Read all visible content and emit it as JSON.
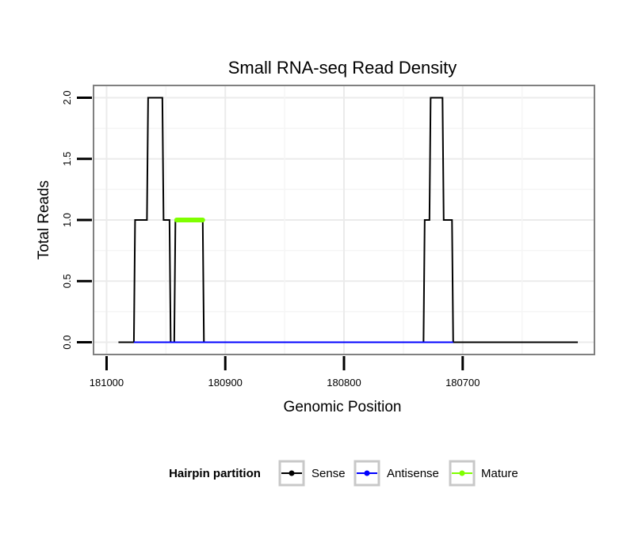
{
  "chart_data": {
    "type": "line",
    "title": "Small RNA-seq Read Density",
    "xlabel": "Genomic Position",
    "ylabel": "Total Reads",
    "x_reversed": true,
    "xlim": [
      181011,
      180589
    ],
    "ylim": [
      -0.1,
      2.1
    ],
    "x_ticks": [
      181000,
      180900,
      180800,
      180700
    ],
    "x_tick_labels": [
      "181000",
      "180900",
      "180800",
      "180700"
    ],
    "y_ticks": [
      0.0,
      0.5,
      1.0,
      1.5,
      2.0
    ],
    "y_tick_labels": [
      "0.0",
      "0.5",
      "1.0",
      "1.5",
      "2.0"
    ],
    "grid": true,
    "legend": {
      "title": "Hairpin partition",
      "position": "bottom",
      "entries": [
        {
          "label": "Sense",
          "color": "#000000"
        },
        {
          "label": "Antisense",
          "color": "#0000ff"
        },
        {
          "label": "Mature",
          "color": "#7fff00"
        }
      ]
    },
    "series": [
      {
        "name": "Sense",
        "color": "#000000",
        "x": [
          180990,
          180977,
          180976,
          180966,
          180965,
          180953,
          180952,
          180947,
          180946,
          180943,
          180942,
          180919,
          180918,
          180733,
          180732,
          180728,
          180727,
          180717,
          180716,
          180709,
          180708,
          180603
        ],
        "y": [
          0,
          0,
          1,
          1,
          2,
          2,
          1,
          1,
          0,
          0,
          1,
          1,
          0,
          0,
          1,
          1,
          2,
          2,
          1,
          1,
          0,
          0
        ]
      },
      {
        "name": "Antisense",
        "color": "#0000ff",
        "x": [
          180977,
          180918,
          180732,
          180708
        ],
        "y": [
          0,
          0,
          0,
          0
        ]
      },
      {
        "name": "Mature",
        "color": "#7fff00",
        "x": [
          180941,
          180919
        ],
        "y": [
          1,
          1
        ]
      }
    ]
  }
}
